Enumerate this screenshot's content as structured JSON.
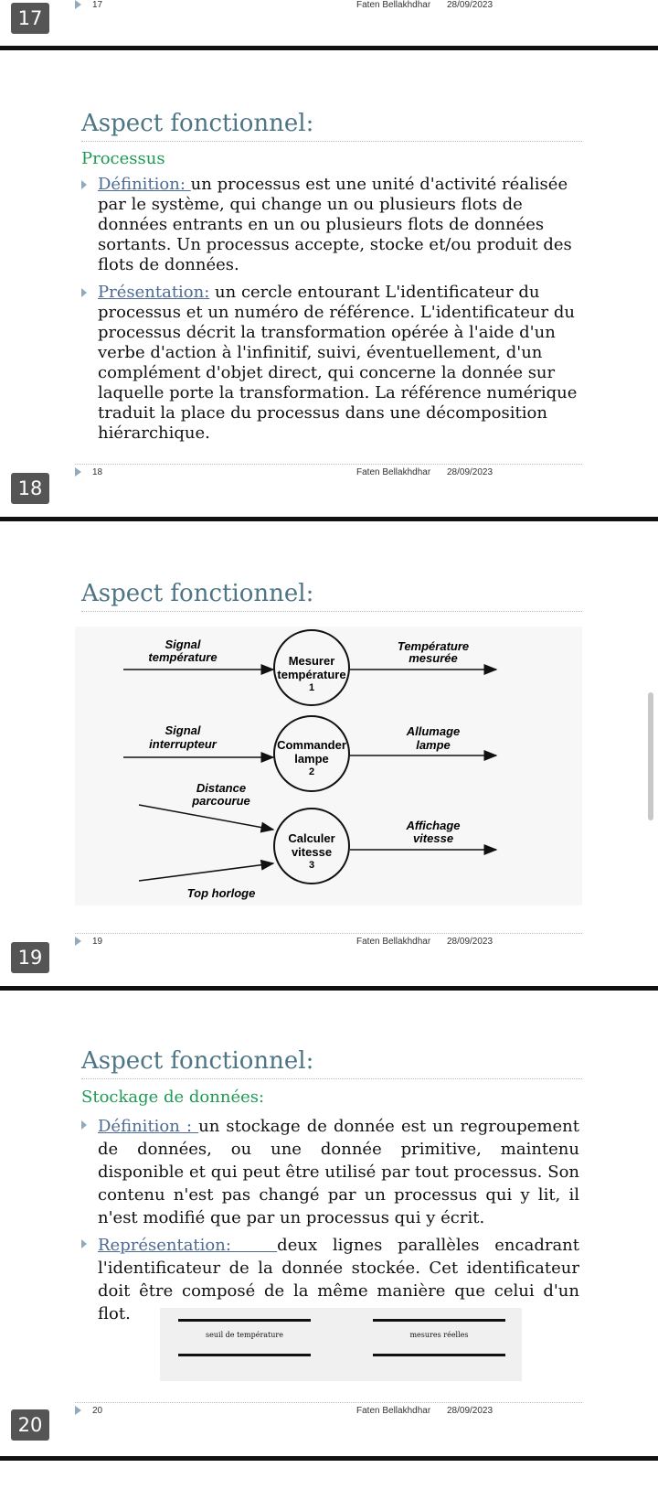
{
  "top_partial": {
    "badge": "17",
    "footer": {
      "num": "17",
      "author": "Faten Bellakhdhar",
      "date": "28/09/2023"
    }
  },
  "slide18": {
    "title": "Aspect fonctionnel:",
    "subtitle": "Processus",
    "bullets": [
      {
        "label": "Définition: ",
        "text": "un processus est une unité d'activité réalisée par le système, qui change un ou plusieurs flots de données entrants en un ou plusieurs flots de données sortants. Un processus accepte, stocke et/ou produit des flots de données."
      },
      {
        "label": "Présentation:",
        "text": " un cercle entourant L'identificateur du processus et un numéro de référence. L'identificateur du processus décrit la transformation opérée à l'aide d'un verbe d'action à l'infinitif, suivi, éventuellement, d'un complément d'objet direct, qui concerne la donnée sur laquelle porte la transformation. La référence numérique traduit la place du processus dans une décomposition hiérarchique."
      }
    ],
    "badge": "18",
    "footer": {
      "num": "18",
      "author": "Faten Bellakhdhar",
      "date": "28/09/2023"
    }
  },
  "slide19": {
    "title": "Aspect fonctionnel:",
    "diagram": {
      "processes": [
        {
          "name_line1": "Mesurer",
          "name_line2": "température",
          "number": "1"
        },
        {
          "name_line1": "Commander",
          "name_line2": "lampe",
          "number": "2"
        },
        {
          "name_line1": "Calculer",
          "name_line2": "vitesse",
          "number": "3"
        }
      ],
      "flows": {
        "in1_l1": "Signal",
        "in1_l2": "température",
        "out1_l1": "Température",
        "out1_l2": "mesurée",
        "in2_l1": "Signal",
        "in2_l2": "interrupteur",
        "out2_l1": "Allumage",
        "out2_l2": "lampe",
        "in3a_l1": "Distance",
        "in3a_l2": "parcourue",
        "in3b": "Top horloge",
        "out3_l1": "Affichage",
        "out3_l2": "vitesse"
      }
    },
    "badge": "19",
    "footer": {
      "num": "19",
      "author": "Faten Bellakhdhar",
      "date": "28/09/2023"
    }
  },
  "slide20": {
    "title": "Aspect fonctionnel:",
    "subtitle": "Stockage de données:",
    "bullets": [
      {
        "label": "Définition : ",
        "text": "un stockage de donnée est un regroupement de données, ou une donnée primitive, maintenu disponible et qui peut être utilisé par tout processus. Son contenu n'est pas changé par un processus qui y lit, il n'est modifié que par un processus qui y écrit."
      },
      {
        "label": "Représentation:   ",
        "text": "deux lignes parallèles encadrant l'identificateur de la donnée stockée. Cet identificateur doit être composé de la même manière que celui d'un flot."
      }
    ],
    "stores": [
      "seuil de température",
      "mesures réelles"
    ],
    "badge": "20",
    "footer": {
      "num": "20",
      "author": "Faten Bellakhdhar",
      "date": "28/09/2023"
    }
  }
}
